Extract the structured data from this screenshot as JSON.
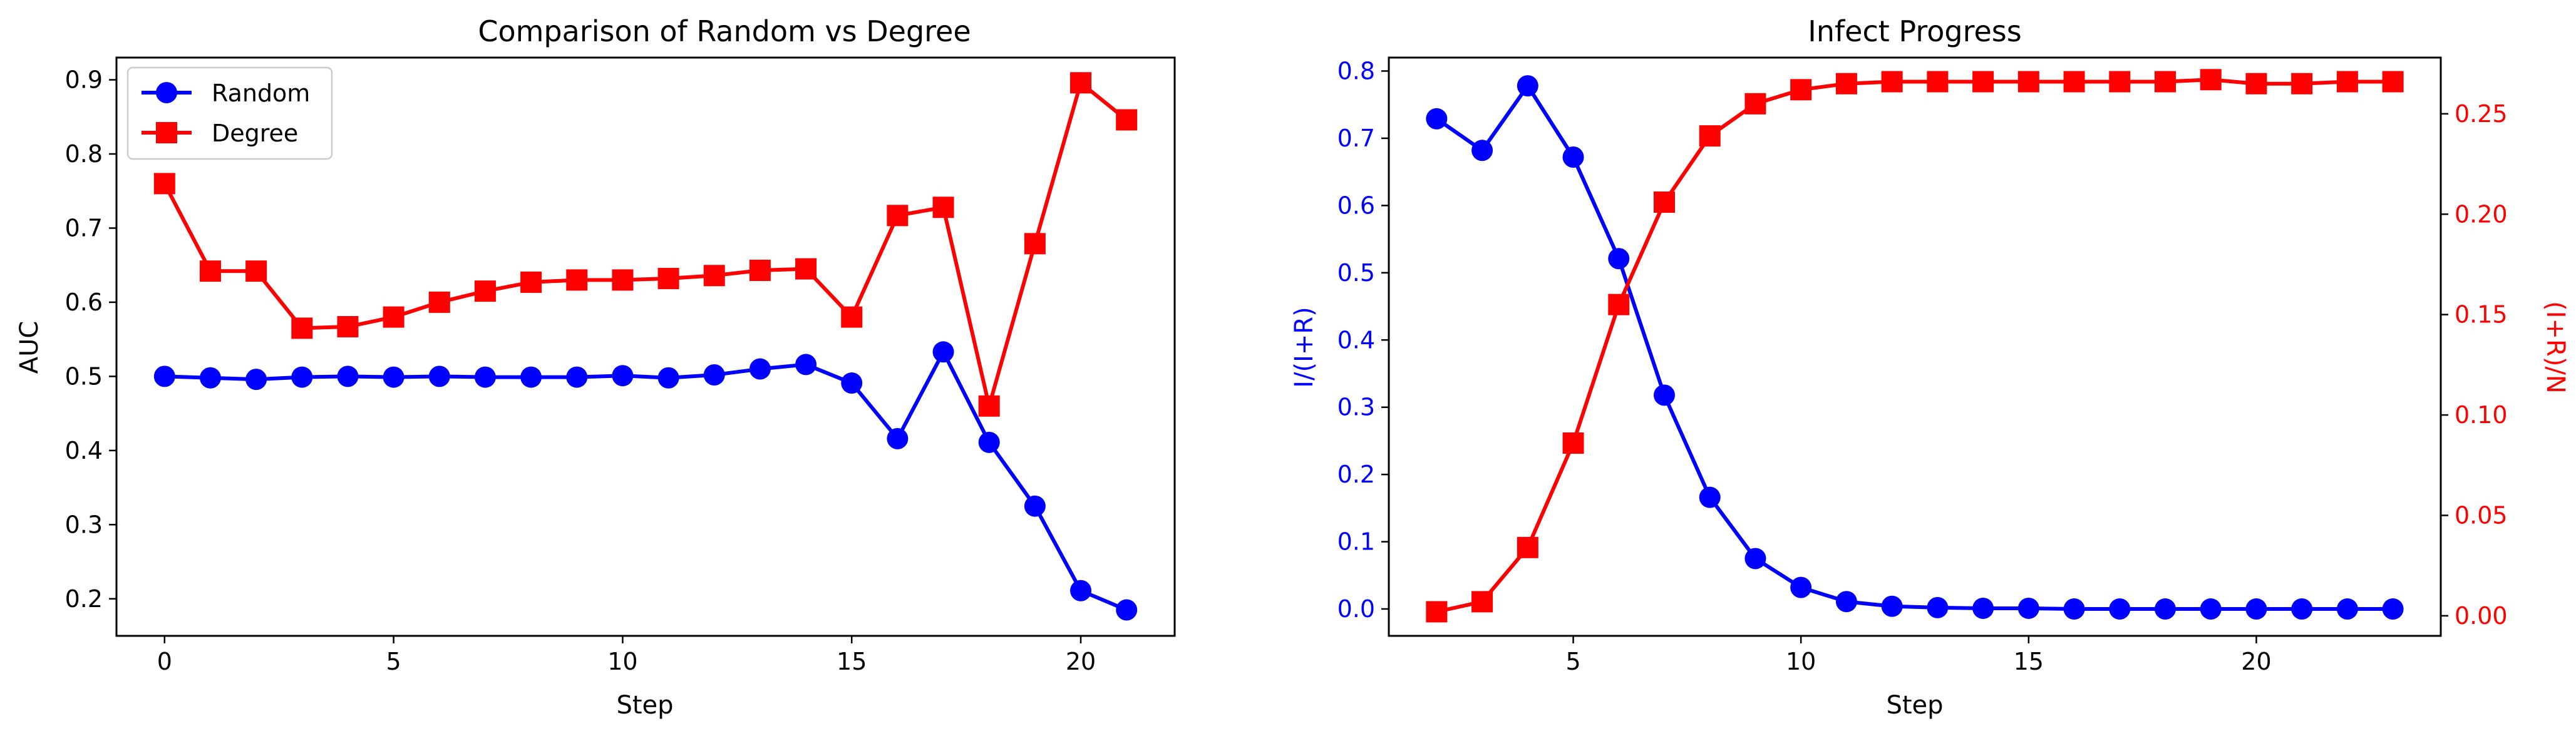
{
  "chart_data": [
    {
      "type": "line",
      "title": "Comparison of Random vs Degree",
      "xlabel": "Step",
      "ylabel": "AUC",
      "xlim": [
        -1.05,
        22.05
      ],
      "ylim": [
        0.15,
        0.93
      ],
      "xticks": [
        0,
        5,
        10,
        15,
        20
      ],
      "yticks": [
        0.2,
        0.3,
        0.4,
        0.5,
        0.6,
        0.7,
        0.8,
        0.9
      ],
      "grid": false,
      "legend": "top-left",
      "x": [
        0,
        1,
        2,
        3,
        4,
        5,
        6,
        7,
        8,
        9,
        10,
        11,
        12,
        13,
        14,
        15,
        16,
        17,
        18,
        19,
        20,
        21
      ],
      "series": [
        {
          "name": "Random",
          "color": "#0000ff",
          "marker": "circle",
          "values": [
            0.5,
            0.498,
            0.496,
            0.499,
            0.5,
            0.499,
            0.5,
            0.499,
            0.499,
            0.499,
            0.501,
            0.498,
            0.502,
            0.51,
            0.516,
            0.491,
            0.416,
            0.533,
            0.411,
            0.325,
            0.211,
            0.185
          ]
        },
        {
          "name": "Degree",
          "color": "#ff0000",
          "marker": "square",
          "values": [
            0.76,
            0.642,
            0.642,
            0.565,
            0.567,
            0.58,
            0.6,
            0.615,
            0.627,
            0.63,
            0.63,
            0.632,
            0.636,
            0.643,
            0.645,
            0.58,
            0.717,
            0.728,
            0.46,
            0.679,
            0.896,
            0.846
          ]
        }
      ]
    },
    {
      "type": "line",
      "title": "Infect Progress",
      "xlabel": "Step",
      "ylabel_left": "I/(I+R)",
      "ylabel_right": "(I+R)/N",
      "xlim": [
        0.95,
        24.05
      ],
      "ylim_left": [
        -0.04,
        0.82
      ],
      "ylim_right": [
        -0.01,
        0.278
      ],
      "xticks": [
        5,
        10,
        15,
        20
      ],
      "yticks_left": [
        0.0,
        0.1,
        0.2,
        0.3,
        0.4,
        0.5,
        0.6,
        0.7,
        0.8
      ],
      "yticks_right": [
        0.0,
        0.05,
        0.1,
        0.15,
        0.2,
        0.25
      ],
      "grid": false,
      "x": [
        2,
        3,
        4,
        5,
        6,
        7,
        8,
        9,
        10,
        11,
        12,
        13,
        14,
        15,
        16,
        17,
        18,
        19,
        20,
        21,
        22,
        23
      ],
      "series": [
        {
          "axis": "left",
          "color": "#0000ff",
          "marker": "circle",
          "values": [
            0.729,
            0.682,
            0.778,
            0.672,
            0.521,
            0.318,
            0.166,
            0.075,
            0.032,
            0.011,
            0.004,
            0.002,
            0.001,
            0.001,
            0.0,
            0.0,
            0.0,
            0.0,
            0.0,
            0.0,
            0.0,
            0.0
          ]
        },
        {
          "axis": "right",
          "color": "#ff0000",
          "marker": "square",
          "values": [
            0.002,
            0.007,
            0.034,
            0.086,
            0.155,
            0.206,
            0.239,
            0.255,
            0.262,
            0.265,
            0.266,
            0.266,
            0.266,
            0.266,
            0.266,
            0.266,
            0.266,
            0.267,
            0.265,
            0.265,
            0.266,
            0.266
          ]
        }
      ]
    }
  ]
}
